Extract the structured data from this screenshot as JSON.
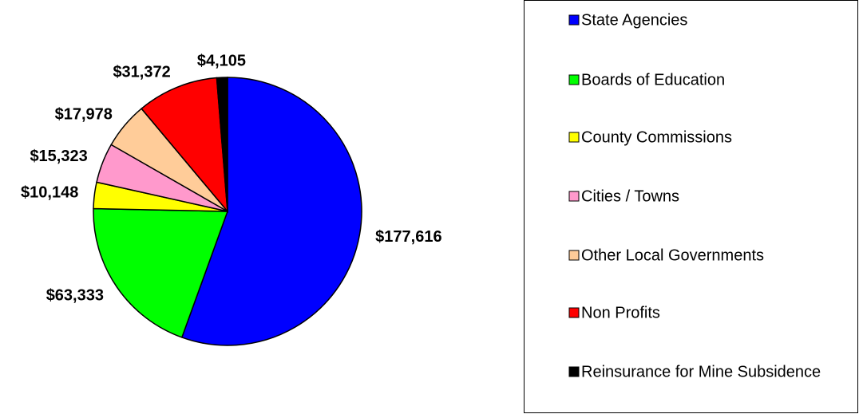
{
  "chart_data": {
    "type": "pie",
    "categories": [
      "State Agencies",
      "Boards of Education",
      "County Commissions",
      "Cities / Towns",
      "Other Local Governments",
      "Non Profits",
      "Reinsurance for Mine Subsidence"
    ],
    "values": [
      177616,
      63333,
      10148,
      15323,
      17978,
      31372,
      4105
    ],
    "value_labels": [
      "$177,616",
      "$63,333",
      "$10,148",
      "$15,323",
      "$17,978",
      "$31,372",
      "$4,105"
    ],
    "colors": [
      "#0000ff",
      "#00ff00",
      "#ffff00",
      "#ff99cc",
      "#ffcc99",
      "#ff0000",
      "#000000"
    ],
    "legend": "right"
  }
}
